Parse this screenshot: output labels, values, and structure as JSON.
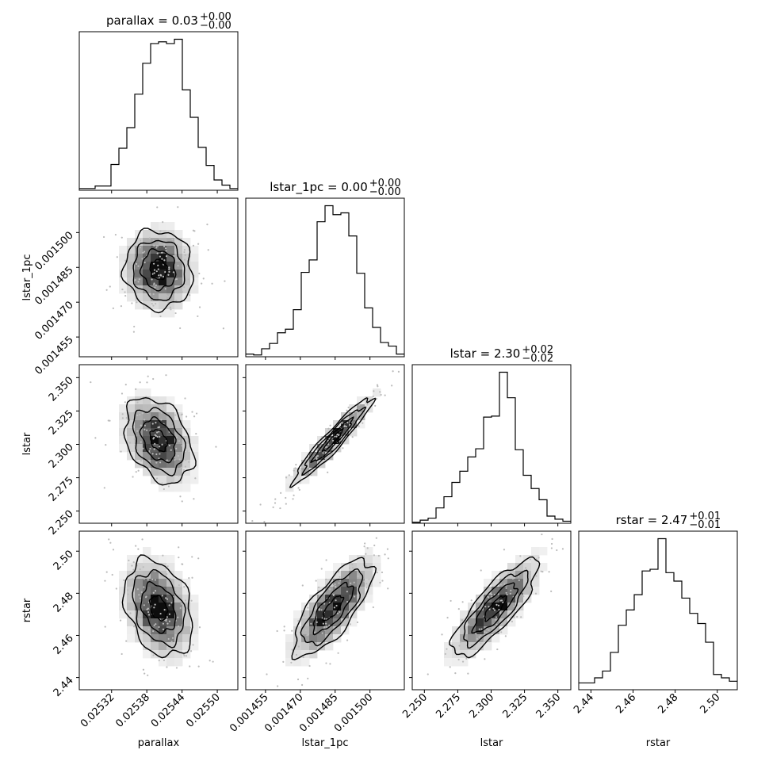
{
  "chart_data": {
    "type": "corner",
    "parameters": [
      {
        "name": "parallax",
        "label": "parallax",
        "range": [
          0.025265,
          0.025535
        ],
        "ticks": [
          0.02532,
          0.02538,
          0.02544,
          0.0255
        ],
        "tick_labels": [
          "0.02532",
          "0.02538",
          "0.02544",
          "0.02550"
        ],
        "title": "parallax = 0.03",
        "title_main": "parallax = 0.03",
        "err_plus": "+0.00",
        "err_minus": "−0.00",
        "hist": [
          2,
          2,
          5,
          5,
          30,
          49,
          73,
          112,
          148,
          171,
          173,
          171,
          176,
          117,
          85,
          50,
          29,
          12,
          6,
          2
        ]
      },
      {
        "name": "lstar_1pc",
        "label": "lstar_1pc",
        "range": [
          0.0014465,
          0.0015148
        ],
        "ticks": [
          0.001455,
          0.00147,
          0.001485,
          0.0015
        ],
        "tick_labels": [
          "0.001455",
          "0.001470",
          "0.001485",
          "0.001500"
        ],
        "title": "lstar_1pc = 0.00",
        "title_main": "lstar_1pc = 0.00",
        "err_plus": "+0.00",
        "err_minus": "−0.00",
        "hist": [
          3,
          2,
          9,
          15,
          27,
          31,
          53,
          95,
          109,
          152,
          170,
          160,
          162,
          136,
          94,
          55,
          33,
          16,
          12,
          3
        ]
      },
      {
        "name": "lstar",
        "label": "lstar",
        "range": [
          2.2409,
          2.3597
        ],
        "ticks": [
          2.25,
          2.275,
          2.3,
          2.325,
          2.35
        ],
        "tick_labels": [
          "2.250",
          "2.275",
          "2.300",
          "2.325",
          "2.350"
        ],
        "title": "lstar = 2.30",
        "title_main": "lstar = 2.30",
        "err_plus": "+0.02",
        "err_minus": "−0.02",
        "hist": [
          1,
          3,
          5,
          15,
          26,
          40,
          51,
          65,
          73,
          104,
          105,
          148,
          123,
          72,
          47,
          34,
          23,
          7,
          4,
          2
        ]
      },
      {
        "name": "rstar",
        "label": "rstar",
        "range": [
          2.4342,
          2.5095
        ],
        "ticks": [
          2.44,
          2.46,
          2.48,
          2.5
        ],
        "tick_labels": [
          "2.44",
          "2.46",
          "2.48",
          "2.50"
        ],
        "title": "rstar = 2.47",
        "title_main": "rstar = 2.47",
        "err_plus": "+0.01",
        "err_minus": "−0.01",
        "hist": [
          4,
          4,
          7,
          11,
          22,
          38,
          47,
          56,
          70,
          71,
          89,
          69,
          64,
          54,
          45,
          39,
          28,
          9,
          7,
          5
        ]
      }
    ],
    "pairs": [
      {
        "row": 1,
        "col": 0,
        "corr": -0.05,
        "mean": [
          0.0254,
          0.001484
        ],
        "sd": [
          2.9e-05,
          8.5e-06
        ]
      },
      {
        "row": 2,
        "col": 0,
        "corr": -0.35,
        "mean": [
          0.0254,
          2.303
        ],
        "sd": [
          2.9e-05,
          0.016
        ]
      },
      {
        "row": 2,
        "col": 1,
        "corr": 0.95,
        "mean": [
          0.001484,
          2.303
        ],
        "sd": [
          8.5e-06,
          0.016
        ]
      },
      {
        "row": 3,
        "col": 0,
        "corr": -0.3,
        "mean": [
          0.0254,
          2.473
        ],
        "sd": [
          2.9e-05,
          0.0115
        ]
      },
      {
        "row": 3,
        "col": 1,
        "corr": 0.75,
        "mean": [
          0.001484,
          2.473
        ],
        "sd": [
          8.5e-06,
          0.0115
        ]
      },
      {
        "row": 3,
        "col": 2,
        "corr": 0.82,
        "mean": [
          2.303,
          2.473
        ],
        "sd": [
          0.016,
          0.0115
        ]
      }
    ],
    "contour_levels_sigma": [
      0.5,
      1.0,
      1.5,
      2.0
    ],
    "colors": {
      "axes": "#000000",
      "hist": "#000000",
      "contour": "#000000",
      "points": "#bbbbbb"
    }
  }
}
